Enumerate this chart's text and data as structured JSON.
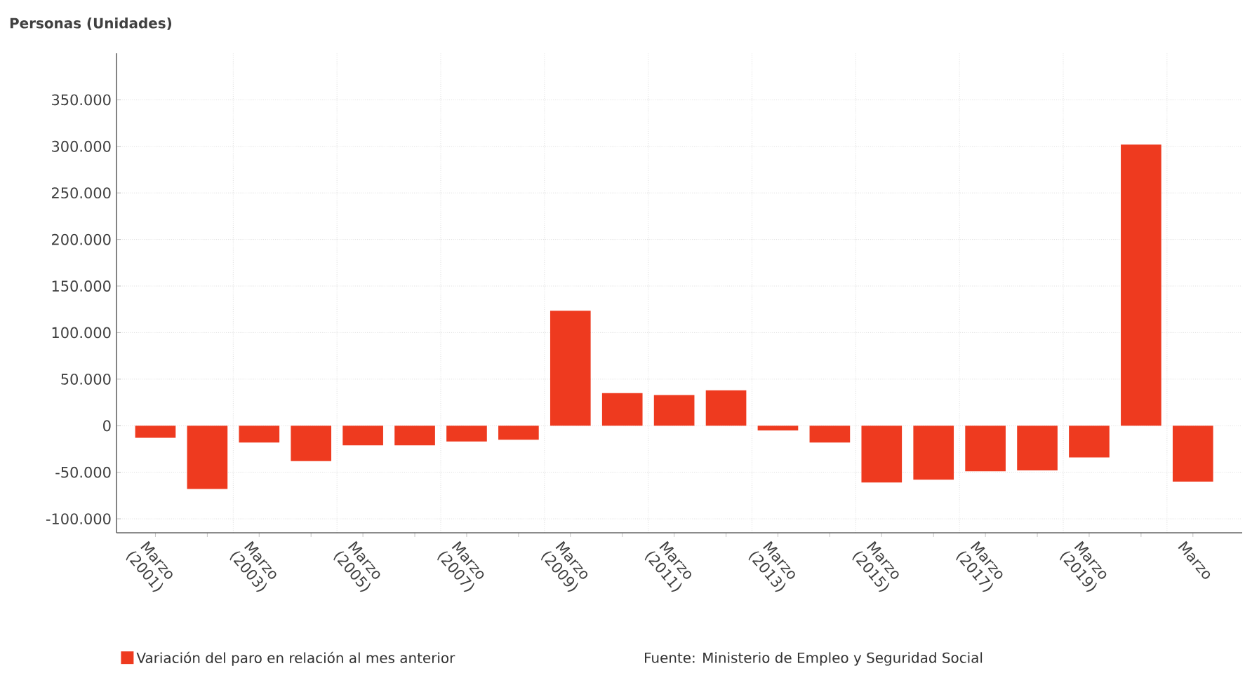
{
  "chart_data": {
    "type": "bar",
    "ylabel": "Personas (Unidades)",
    "categories": [
      "Marzo (2001)",
      null,
      "Marzo (2003)",
      null,
      "Marzo (2005)",
      null,
      "Marzo (2007)",
      null,
      "Marzo (2009)",
      null,
      "Marzo (2011)",
      null,
      "Marzo (2013)",
      null,
      "Marzo (2015)",
      null,
      "Marzo (2017)",
      null,
      "Marzo (2019)",
      null,
      "Marzo"
    ],
    "series": [
      {
        "name": "Variación del paro en relación al mes anterior",
        "color": "#ee3a1f",
        "values": [
          -13000,
          -68000,
          -18000,
          -38000,
          -21000,
          -21000,
          -17000,
          -15000,
          123500,
          35000,
          33000,
          38000,
          -5000,
          -18000,
          -61000,
          -58000,
          -49000,
          -48000,
          -34000,
          302000,
          -60000
        ]
      }
    ],
    "ylim": [
      -115000,
      400000
    ],
    "yticks": [
      {
        "value": -100000,
        "label": "-100.000"
      },
      {
        "value": -50000,
        "label": "-50.000"
      },
      0,
      {
        "value": 50000,
        "label": "50.000"
      },
      {
        "value": 100000,
        "label": "100.000"
      },
      {
        "value": 150000,
        "label": "150.000"
      },
      {
        "value": 200000,
        "label": "200.000"
      },
      {
        "value": 250000,
        "label": "250.000"
      },
      {
        "value": 300000,
        "label": "300.000"
      },
      {
        "value": 350000,
        "label": "350.000"
      }
    ],
    "grid": true,
    "legend": "bottom left",
    "annotations": [
      "Fuente: Ministerio de Empleo y Seguridad Social"
    ]
  }
}
